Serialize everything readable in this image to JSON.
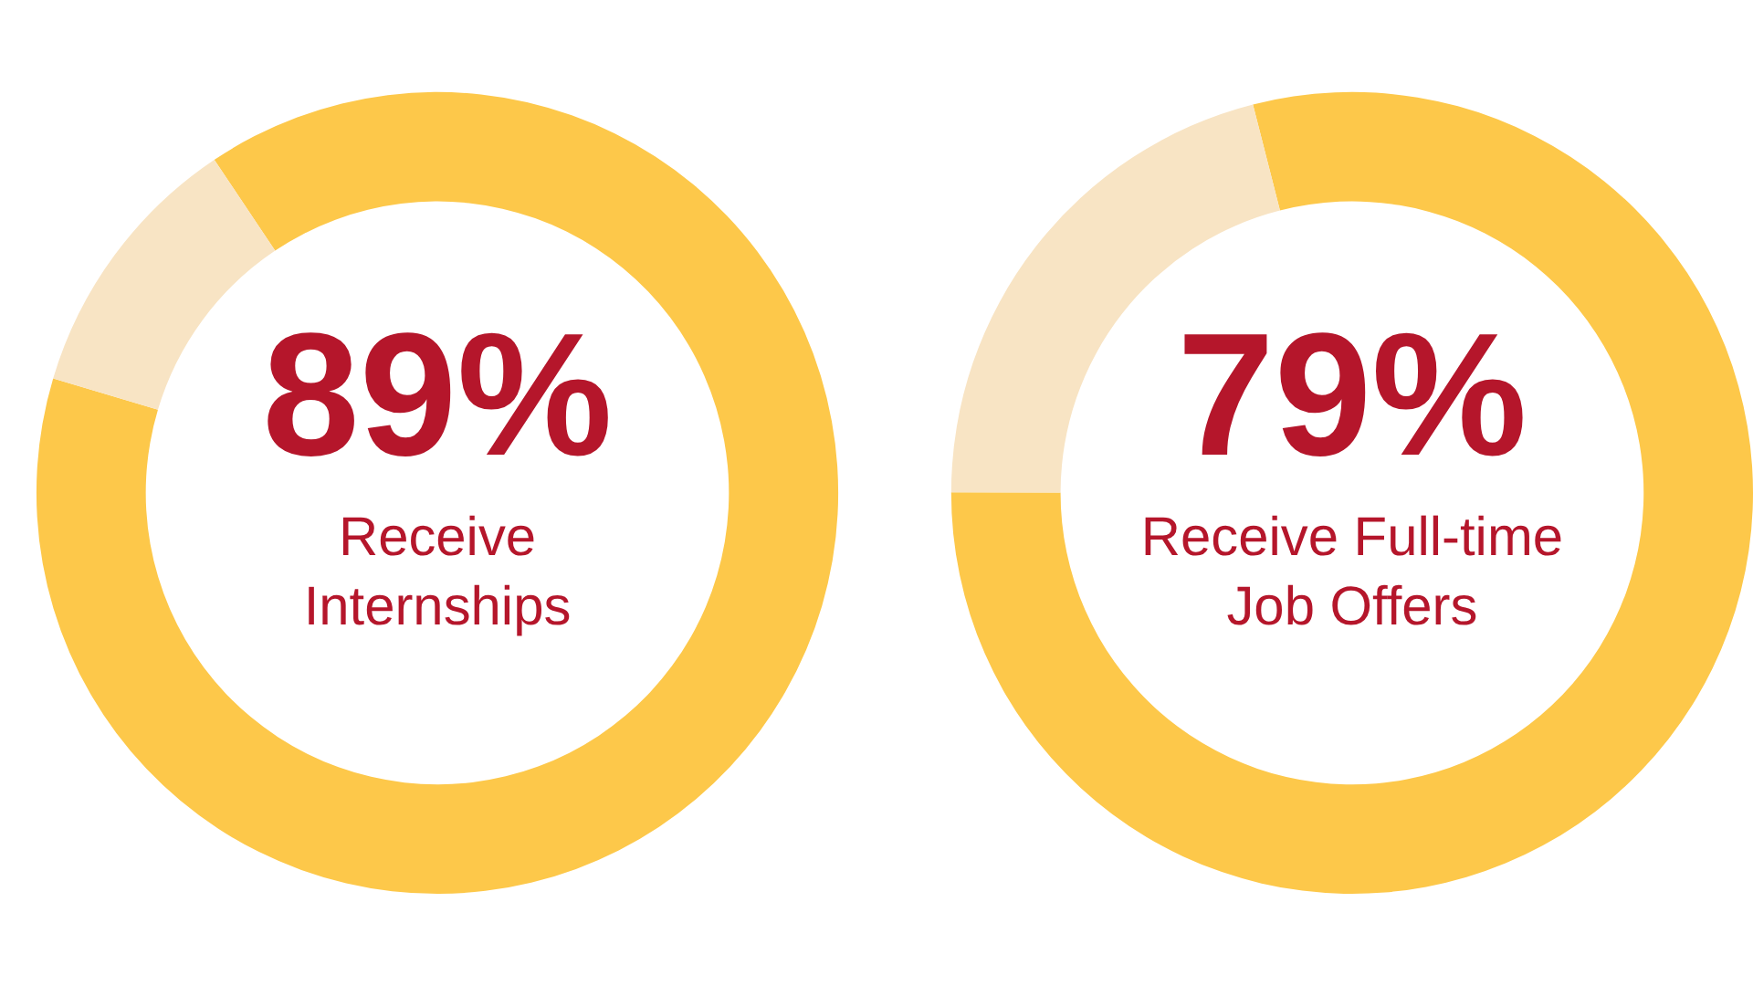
{
  "chart_data": [
    {
      "type": "donut",
      "categories": [
        null,
        null
      ],
      "values": [
        89,
        11
      ],
      "colors": [
        "#fdc84a",
        "#f8e4c4"
      ],
      "value_labels": [
        "89%",
        null
      ],
      "annotations": [
        "Receive\nInternships"
      ],
      "legend": false
    },
    {
      "type": "donut",
      "categories": [
        null,
        null
      ],
      "values": [
        79,
        21
      ],
      "colors": [
        "#fdc84a",
        "#f8e4c4"
      ],
      "value_labels": [
        "79%",
        null
      ],
      "annotations": [
        "Receive Full-time\nJob Offers"
      ],
      "legend": false
    }
  ]
}
